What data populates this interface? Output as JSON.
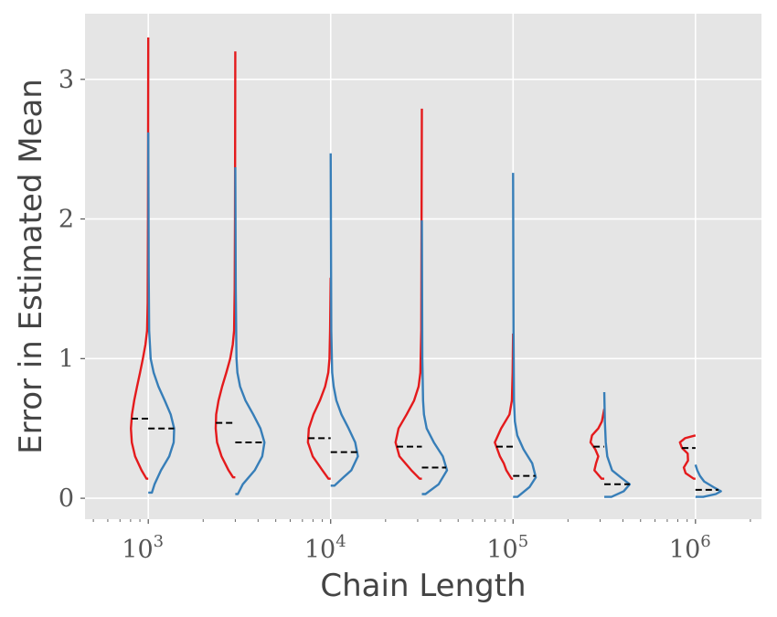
{
  "chart_data": {
    "type": "violin",
    "title": "",
    "xlabel": "Chain Length",
    "ylabel": "Error in Estimated Mean",
    "x_scale": "log",
    "xlim": [
      450,
      2300000
    ],
    "ylim": [
      -0.15,
      3.47
    ],
    "x_ticks": [
      {
        "value": 1000,
        "base": "10",
        "exp": "3"
      },
      {
        "value": 10000,
        "base": "10",
        "exp": "4"
      },
      {
        "value": 100000,
        "base": "10",
        "exp": "5"
      },
      {
        "value": 1000000,
        "base": "10",
        "exp": "6"
      }
    ],
    "y_ticks": [
      {
        "value": 0,
        "label": "0"
      },
      {
        "value": 1,
        "label": "1"
      },
      {
        "value": 2,
        "label": "2"
      },
      {
        "value": 3,
        "label": "3"
      }
    ],
    "grid": true,
    "legend": "none",
    "colors": {
      "left": "#e41a1c",
      "right": "#377eb8",
      "mean": "#000000",
      "background": "#e5e5e5",
      "grid": "#ffffff"
    },
    "violins": [
      {
        "x": 1000,
        "left": {
          "min": 0.14,
          "max": 3.3,
          "mean": 0.57,
          "profile": [
            [
              0.14,
              0.012
            ],
            [
              0.2,
              0.045
            ],
            [
              0.3,
              0.088
            ],
            [
              0.4,
              0.11
            ],
            [
              0.5,
              0.116
            ],
            [
              0.6,
              0.109
            ],
            [
              0.7,
              0.094
            ],
            [
              0.8,
              0.075
            ],
            [
              0.9,
              0.055
            ],
            [
              1.0,
              0.036
            ],
            [
              1.1,
              0.019
            ],
            [
              1.2,
              0.008
            ],
            [
              1.4,
              0.004
            ],
            [
              2.0,
              0.002
            ],
            [
              3.3,
              0.0
            ]
          ]
        },
        "right": {
          "min": 0.04,
          "max": 2.62,
          "mean": 0.5,
          "profile": [
            [
              0.04,
              0.024
            ],
            [
              0.1,
              0.042
            ],
            [
              0.2,
              0.085
            ],
            [
              0.3,
              0.14
            ],
            [
              0.4,
              0.17
            ],
            [
              0.5,
              0.173
            ],
            [
              0.6,
              0.15
            ],
            [
              0.7,
              0.11
            ],
            [
              0.8,
              0.068
            ],
            [
              0.9,
              0.036
            ],
            [
              1.0,
              0.016
            ],
            [
              1.2,
              0.006
            ],
            [
              1.6,
              0.003
            ],
            [
              2.62,
              0.0
            ]
          ]
        }
      },
      {
        "x": 3000,
        "left": {
          "min": 0.15,
          "max": 3.2,
          "mean": 0.54,
          "profile": [
            [
              0.15,
              0.015
            ],
            [
              0.2,
              0.045
            ],
            [
              0.3,
              0.092
            ],
            [
              0.4,
              0.122
            ],
            [
              0.5,
              0.131
            ],
            [
              0.6,
              0.128
            ],
            [
              0.7,
              0.112
            ],
            [
              0.8,
              0.088
            ],
            [
              0.9,
              0.06
            ],
            [
              1.0,
              0.034
            ],
            [
              1.1,
              0.017
            ],
            [
              1.2,
              0.008
            ],
            [
              1.5,
              0.004
            ],
            [
              2.0,
              0.002
            ],
            [
              3.2,
              0.0
            ]
          ]
        },
        "right": {
          "min": 0.03,
          "max": 2.37,
          "mean": 0.4,
          "profile": [
            [
              0.03,
              0.017
            ],
            [
              0.1,
              0.05
            ],
            [
              0.2,
              0.13
            ],
            [
              0.3,
              0.18
            ],
            [
              0.4,
              0.195
            ],
            [
              0.5,
              0.168
            ],
            [
              0.6,
              0.12
            ],
            [
              0.7,
              0.068
            ],
            [
              0.8,
              0.032
            ],
            [
              0.9,
              0.014
            ],
            [
              1.0,
              0.008
            ],
            [
              1.5,
              0.003
            ],
            [
              2.37,
              0.0
            ]
          ]
        }
      },
      {
        "x": 10000,
        "left": {
          "min": 0.14,
          "max": 1.58,
          "mean": 0.43,
          "profile": [
            [
              0.14,
              0.015
            ],
            [
              0.2,
              0.055
            ],
            [
              0.3,
              0.12
            ],
            [
              0.4,
              0.152
            ],
            [
              0.5,
              0.146
            ],
            [
              0.6,
              0.115
            ],
            [
              0.7,
              0.072
            ],
            [
              0.8,
              0.037
            ],
            [
              0.9,
              0.016
            ],
            [
              1.0,
              0.008
            ],
            [
              1.2,
              0.004
            ],
            [
              1.58,
              0.0
            ]
          ]
        },
        "right": {
          "min": 0.09,
          "max": 2.47,
          "mean": 0.33,
          "profile": [
            [
              0.09,
              0.025
            ],
            [
              0.15,
              0.086
            ],
            [
              0.2,
              0.138
            ],
            [
              0.3,
              0.182
            ],
            [
              0.4,
              0.164
            ],
            [
              0.5,
              0.12
            ],
            [
              0.6,
              0.072
            ],
            [
              0.7,
              0.038
            ],
            [
              0.8,
              0.02
            ],
            [
              0.9,
              0.01
            ],
            [
              1.2,
              0.004
            ],
            [
              2.47,
              0.0
            ]
          ]
        }
      },
      {
        "x": 31623,
        "left": {
          "min": 0.14,
          "max": 2.79,
          "mean": 0.37,
          "profile": [
            [
              0.14,
              0.015
            ],
            [
              0.2,
              0.07
            ],
            [
              0.3,
              0.15
            ],
            [
              0.4,
              0.176
            ],
            [
              0.5,
              0.156
            ],
            [
              0.6,
              0.102
            ],
            [
              0.7,
              0.052
            ],
            [
              0.8,
              0.022
            ],
            [
              0.9,
              0.01
            ],
            [
              1.2,
              0.004
            ],
            [
              2.0,
              0.002
            ],
            [
              2.79,
              0.0
            ]
          ]
        },
        "right": {
          "min": 0.03,
          "max": 1.99,
          "mean": 0.22,
          "profile": [
            [
              0.03,
              0.024
            ],
            [
              0.1,
              0.112
            ],
            [
              0.2,
              0.168
            ],
            [
              0.3,
              0.14
            ],
            [
              0.4,
              0.08
            ],
            [
              0.5,
              0.032
            ],
            [
              0.6,
              0.014
            ],
            [
              0.7,
              0.008
            ],
            [
              1.0,
              0.003
            ],
            [
              1.99,
              0.0
            ]
          ]
        }
      },
      {
        "x": 100000,
        "left": {
          "min": 0.14,
          "max": 1.18,
          "mean": 0.37,
          "profile": [
            [
              0.14,
              0.01
            ],
            [
              0.2,
              0.045
            ],
            [
              0.25,
              0.062
            ],
            [
              0.3,
              0.088
            ],
            [
              0.4,
              0.122
            ],
            [
              0.5,
              0.08
            ],
            [
              0.6,
              0.024
            ],
            [
              0.7,
              0.008
            ],
            [
              0.9,
              0.003
            ],
            [
              1.18,
              0.0
            ]
          ]
        },
        "right": {
          "min": 0.01,
          "max": 2.33,
          "mean": 0.16,
          "profile": [
            [
              0.01,
              0.03
            ],
            [
              0.08,
              0.11
            ],
            [
              0.15,
              0.152
            ],
            [
              0.25,
              0.128
            ],
            [
              0.35,
              0.07
            ],
            [
              0.45,
              0.028
            ],
            [
              0.55,
              0.012
            ],
            [
              0.7,
              0.006
            ],
            [
              1.2,
              0.003
            ],
            [
              2.33,
              0.0
            ]
          ]
        }
      },
      {
        "x": 316228,
        "left": {
          "min": 0.14,
          "max": 0.64,
          "mean": 0.37,
          "profile": [
            [
              0.14,
              0.018
            ],
            [
              0.2,
              0.066
            ],
            [
              0.25,
              0.055
            ],
            [
              0.3,
              0.04
            ],
            [
              0.35,
              0.06
            ],
            [
              0.4,
              0.092
            ],
            [
              0.45,
              0.082
            ],
            [
              0.5,
              0.04
            ],
            [
              0.55,
              0.016
            ],
            [
              0.64,
              0.0
            ]
          ]
        },
        "right": {
          "min": 0.01,
          "max": 0.76,
          "mean": 0.1,
          "profile": [
            [
              0.01,
              0.048
            ],
            [
              0.05,
              0.13
            ],
            [
              0.1,
              0.17
            ],
            [
              0.15,
              0.11
            ],
            [
              0.2,
              0.052
            ],
            [
              0.3,
              0.02
            ],
            [
              0.4,
              0.01
            ],
            [
              0.55,
              0.004
            ],
            [
              0.76,
              0.0
            ]
          ]
        }
      },
      {
        "x": 1000000,
        "left": {
          "min": 0.14,
          "max": 0.45,
          "mean": 0.36,
          "profile": [
            [
              0.14,
              0.012
            ],
            [
              0.18,
              0.066
            ],
            [
              0.22,
              0.078
            ],
            [
              0.27,
              0.05
            ],
            [
              0.32,
              0.052
            ],
            [
              0.36,
              0.09
            ],
            [
              0.4,
              0.104
            ],
            [
              0.43,
              0.07
            ],
            [
              0.45,
              0.0
            ]
          ]
        },
        "right": {
          "min": 0.01,
          "max": 0.24,
          "mean": 0.06,
          "profile": [
            [
              0.01,
              0.052
            ],
            [
              0.03,
              0.136
            ],
            [
              0.05,
              0.17
            ],
            [
              0.08,
              0.12
            ],
            [
              0.12,
              0.058
            ],
            [
              0.16,
              0.03
            ],
            [
              0.2,
              0.012
            ],
            [
              0.24,
              0.0
            ]
          ]
        }
      }
    ]
  }
}
